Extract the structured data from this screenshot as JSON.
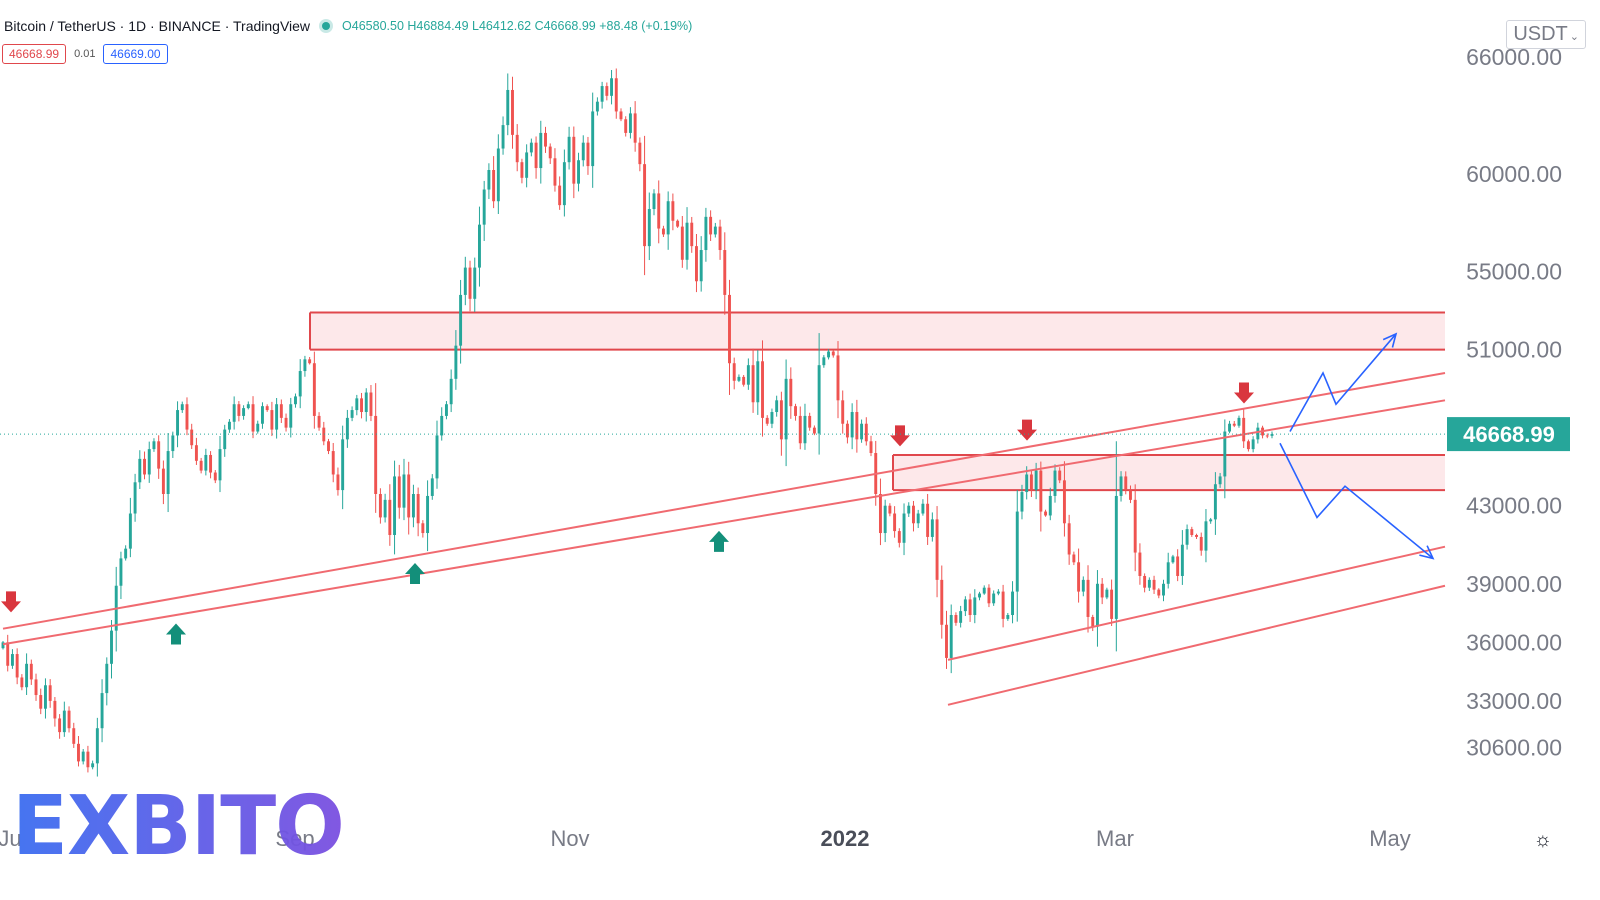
{
  "header": {
    "symbol": "Bitcoin / TetherUS · 1D · BINANCE · TradingView",
    "ohlc": "O46580.50 H46884.49 L46412.62 C46668.99 +88.48 (+0.19%)",
    "bid": "46668.99",
    "spread": "0.01",
    "ask": "46669.00",
    "currency": "USDT"
  },
  "watermark": {
    "text": "EXBITO"
  },
  "colors": {
    "up": "#26a69a",
    "down": "#ef5350",
    "zone_fill": "#fde4e6",
    "zone_line": "#e0474c",
    "trend": "#f06a70",
    "projection": "#2962ff",
    "price_label": "#26a69a",
    "axis_text": "#787b86",
    "watermark_blue": "#3b6ef0",
    "watermark_purple": "#7b4fe0"
  },
  "chart_data": {
    "type": "candlestick",
    "ylim": [
      27000,
      68500
    ],
    "y_ticks": [
      {
        "v": 66000,
        "label": "66000.00"
      },
      {
        "v": 60000,
        "label": "60000.00"
      },
      {
        "v": 55000,
        "label": "55000.00"
      },
      {
        "v": 51000,
        "label": "51000.00"
      },
      {
        "v": 43000,
        "label": "43000.00"
      },
      {
        "v": 39000,
        "label": "39000.00"
      },
      {
        "v": 36000,
        "label": "36000.00"
      },
      {
        "v": 33000,
        "label": "33000.00"
      },
      {
        "v": 30600,
        "label": "30600.00"
      }
    ],
    "x_ticks": [
      {
        "label": "Ju",
        "x": 10
      },
      {
        "label": "Sep",
        "x": 295
      },
      {
        "label": "Nov",
        "x": 570
      },
      {
        "label": "2022",
        "x": 845,
        "bold": true
      },
      {
        "label": "Mar",
        "x": 1115
      },
      {
        "label": "May",
        "x": 1390
      }
    ],
    "last_price": {
      "value": 46668.99,
      "label": "46668.99"
    },
    "closes": [
      36000,
      34800,
      35400,
      34200,
      33700,
      34900,
      34100,
      33300,
      32600,
      33800,
      33000,
      32100,
      31400,
      32500,
      31600,
      30800,
      29900,
      30400,
      29600,
      29800,
      31600,
      33400,
      34900,
      36600,
      38900,
      40300,
      40800,
      42600,
      44200,
      45400,
      44600,
      45900,
      46300,
      44900,
      43600,
      45800,
      46600,
      47900,
      48200,
      46900,
      46100,
      45300,
      44800,
      45600,
      44700,
      44300,
      45900,
      46900,
      47300,
      48200,
      47600,
      48000,
      48200,
      46800,
      47200,
      48100,
      47900,
      46900,
      48200,
      47500,
      47000,
      48200,
      48600,
      49900,
      50500,
      50300,
      47600,
      47000,
      46300,
      45800,
      44600,
      43800,
      46400,
      47500,
      47900,
      48500,
      47800,
      48800,
      47600,
      43600,
      42400,
      43300,
      41500,
      44500,
      42900,
      44600,
      42400,
      43600,
      42100,
      41600,
      43500,
      44400,
      46600,
      47600,
      48200,
      49500,
      51200,
      53800,
      55200,
      53600,
      55200,
      57400,
      59200,
      60200,
      58600,
      61300,
      62500,
      64300,
      62000,
      60600,
      59800,
      61100,
      61600,
      60300,
      62100,
      61400,
      60800,
      59400,
      58400,
      60600,
      61900,
      59500,
      60700,
      61600,
      60400,
      63200,
      63700,
      64500,
      64000,
      64900,
      63200,
      62800,
      62100,
      63100,
      61600,
      60500,
      56300,
      58200,
      59000,
      57200,
      56900,
      58600,
      57600,
      57300,
      55600,
      57500,
      56300,
      54500,
      56100,
      57800,
      56900,
      57300,
      56100,
      53800,
      50300,
      49400,
      49600,
      49200,
      50200,
      48300,
      50400,
      47500,
      47200,
      47800,
      48400,
      46400,
      49500,
      48100,
      47600,
      46200,
      47600,
      47000,
      46700,
      50200,
      50600,
      50900,
      50700,
      48400,
      47200,
      46500,
      47800,
      46400,
      47200,
      46300,
      45700,
      43600,
      41600,
      43000,
      42600,
      41700,
      41100,
      42600,
      43000,
      42100,
      42600,
      43100,
      41400,
      42300,
      39200,
      36900,
      35200,
      37400,
      37000,
      37600,
      38200,
      37400,
      38300,
      38500,
      38800,
      38000,
      38500,
      38600,
      37200,
      37400,
      38600,
      42700,
      43700,
      44600,
      43800,
      44800,
      42700,
      42500,
      43500,
      44800,
      44300,
      42100,
      40500,
      40100,
      38600,
      39200,
      37300,
      36800,
      39000,
      38300,
      38700,
      37200,
      43500,
      44500,
      43800,
      43300,
      40600,
      39400,
      38800,
      39200,
      38700,
      38400,
      39000,
      40100,
      40400,
      39400,
      41000,
      41800,
      41500,
      41400,
      40700,
      42200,
      42300,
      44100,
      44500,
      46800,
      47200,
      47100,
      47500,
      46300,
      45900,
      46400,
      47000,
      46600,
      46580,
      46669
    ],
    "zones": [
      {
        "y1": 51000,
        "y2": 52900,
        "x_start": 310
      },
      {
        "y1": 43800,
        "y2": 45600,
        "x_start": 893
      }
    ],
    "trendlines": [
      {
        "x1": 3,
        "y1": 36700,
        "x2": 1445,
        "y2": 49800
      },
      {
        "x1": 3,
        "y1": 35900,
        "x2": 1445,
        "y2": 48400
      },
      {
        "x1": 948,
        "y1": 35100,
        "x2": 1445,
        "y2": 40900
      },
      {
        "x1": 948,
        "y1": 32800,
        "x2": 1445,
        "y2": 38900
      }
    ],
    "projections": [
      {
        "points": [
          [
            1290,
            46800
          ],
          [
            1323,
            49800
          ],
          [
            1336,
            48200
          ],
          [
            1396,
            51800
          ]
        ]
      },
      {
        "points": [
          [
            1280,
            46200
          ],
          [
            1317,
            42400
          ],
          [
            1345,
            44000
          ],
          [
            1433,
            40300
          ]
        ]
      }
    ],
    "arrows": [
      {
        "x": 11,
        "v": 38050,
        "dir": "down"
      },
      {
        "x": 176,
        "v": 36450,
        "dir": "up"
      },
      {
        "x": 415,
        "v": 39550,
        "dir": "up"
      },
      {
        "x": 719,
        "v": 41200,
        "dir": "up"
      },
      {
        "x": 900,
        "v": 46550,
        "dir": "down"
      },
      {
        "x": 1027,
        "v": 46850,
        "dir": "down"
      },
      {
        "x": 1244,
        "v": 48750,
        "dir": "down"
      }
    ]
  }
}
